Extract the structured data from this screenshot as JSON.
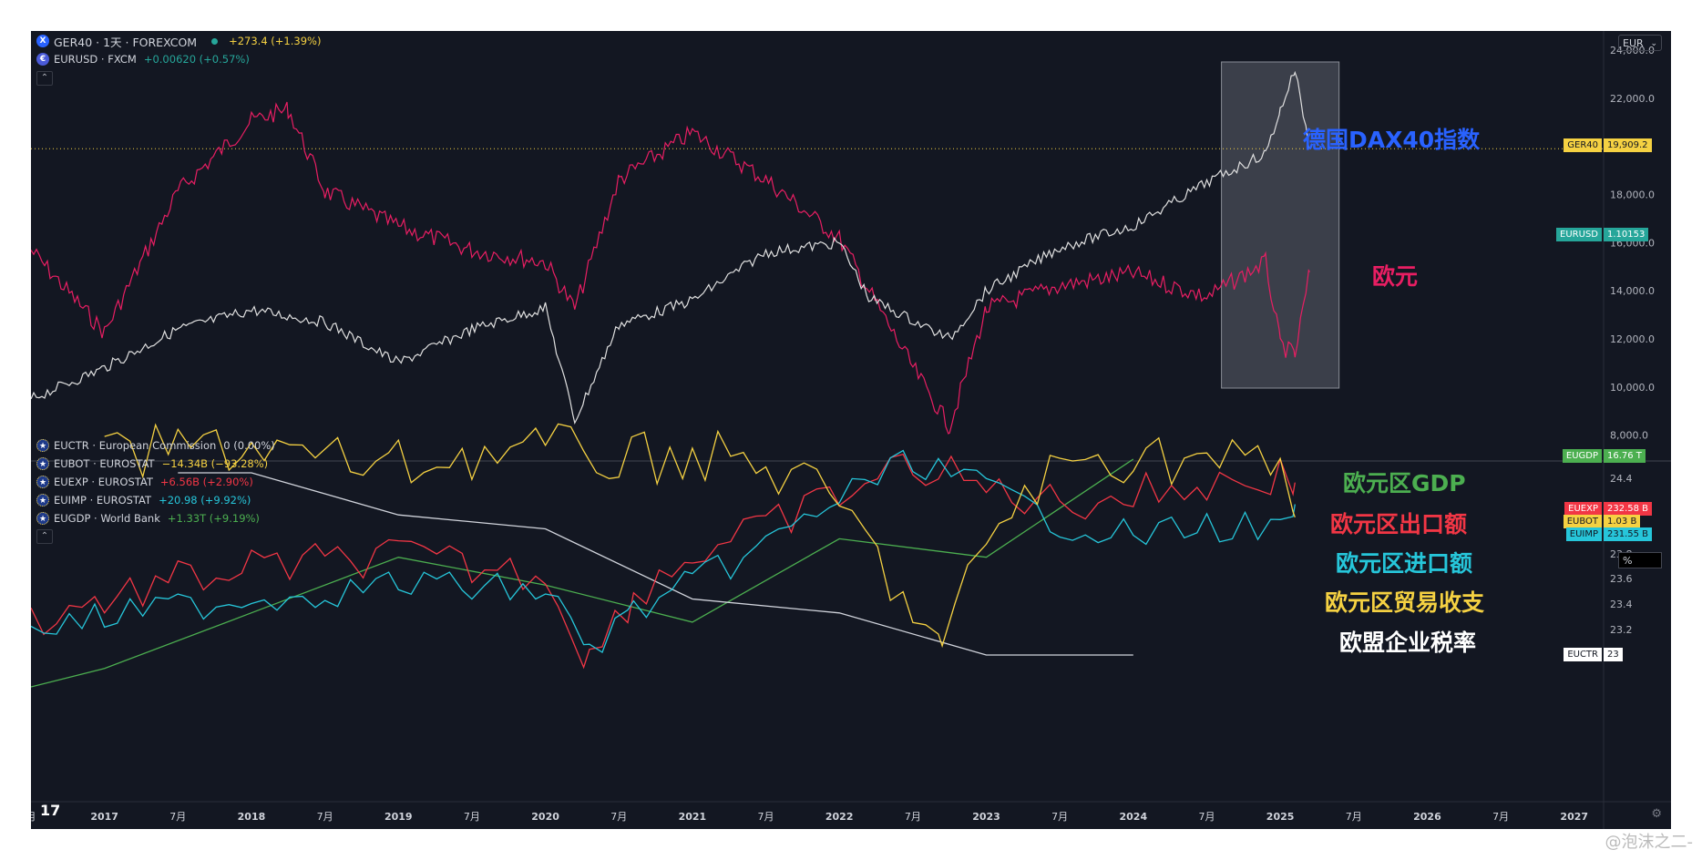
{
  "header": {
    "main_symbol": "GER40 · 1天 · FOREXCOM",
    "main_change": "+273.4 (+1.39%)",
    "overlay_symbol": "EURUSD · FXCM",
    "overlay_change": "+0.00620 (+0.57%)",
    "currency": "EUR"
  },
  "lower_legend": [
    {
      "name": "EUCTR · European Commission",
      "value": "0 (0.00%)",
      "color": "#d1d4dc"
    },
    {
      "name": "EUBOT · EUROSTAT",
      "value": "−14.34B (−93.28%)",
      "color": "#f5d142"
    },
    {
      "name": "EUEXP · EUROSTAT",
      "value": "+6.56B (+2.90%)",
      "color": "#f23645"
    },
    {
      "name": "EUIMP · EUROSTAT",
      "value": "+20.98 (+9.92%)",
      "color": "#26c6da"
    },
    {
      "name": "EUGDP · World Bank",
      "value": "+1.33T (+9.19%)",
      "color": "#4caf50"
    }
  ],
  "price_tags": [
    {
      "label": "GER40",
      "value": "19,909.2",
      "color": "#f5d142",
      "text": "#131722"
    },
    {
      "label": "EURUSD",
      "value": "1.10153",
      "color": "#26a69a",
      "text": "#ffffff"
    },
    {
      "label": "EUGDP",
      "value": "16.76 T",
      "color": "#4caf50",
      "text": "#ffffff"
    },
    {
      "label": "EUEXP",
      "value": "232.58 B",
      "color": "#f23645",
      "text": "#ffffff"
    },
    {
      "label": "EUBOT",
      "value": "1.03 B",
      "color": "#f5d142",
      "text": "#131722"
    },
    {
      "label": "EUIMP",
      "value": "231.55 B",
      "color": "#26c6da",
      "text": "#131722"
    },
    {
      "label": "EUCTR",
      "value": "23",
      "color": "#ffffff",
      "text": "#131722"
    }
  ],
  "pct_label": "%",
  "annotations": [
    {
      "text": "德国DAX40指数",
      "color": "#2962ff"
    },
    {
      "text": "欧元",
      "color": "#e91e63"
    },
    {
      "text": "欧元区GDP",
      "color": "#4caf50"
    },
    {
      "text": "欧元区出口额",
      "color": "#f23645"
    },
    {
      "text": "欧元区进口额",
      "color": "#26c6da"
    },
    {
      "text": "欧元区贸易收支",
      "color": "#f5d142"
    },
    {
      "text": "欧盟企业税率",
      "color": "#ffffff"
    }
  ],
  "watermark": "@泡沫之二-",
  "tv_logo": "17",
  "chart_data": [
    {
      "type": "line",
      "pane": "upper",
      "series": [
        {
          "name": "GER40",
          "color": "#e0e0e0",
          "x": [
            2016.5,
            2017.0,
            2017.5,
            2018.0,
            2018.5,
            2019.0,
            2019.5,
            2020.0,
            2020.2,
            2020.5,
            2021.0,
            2021.5,
            2022.0,
            2022.2,
            2022.75,
            2023.0,
            2023.5,
            2024.0,
            2024.5,
            2024.9,
            2025.0,
            2025.1,
            2025.2
          ],
          "y": [
            9500,
            10800,
            12400,
            13200,
            12700,
            11000,
            12400,
            13300,
            8600,
            12600,
            13600,
            15600,
            16000,
            13700,
            12000,
            14000,
            15800,
            16700,
            18500,
            19700,
            21500,
            23200,
            19909
          ]
        },
        {
          "name": "EURUSD",
          "color": "#e91e63",
          "x": [
            2016.5,
            2017.0,
            2017.5,
            2018.0,
            2018.25,
            2018.5,
            2019.0,
            2019.5,
            2020.0,
            2020.2,
            2020.5,
            2021.0,
            2021.5,
            2022.0,
            2022.5,
            2022.75,
            2023.0,
            2023.5,
            2024.0,
            2024.5,
            2024.9,
            2025.0,
            2025.1,
            2025.2
          ],
          "y": [
            1.12,
            1.05,
            1.17,
            1.23,
            1.24,
            1.17,
            1.14,
            1.12,
            1.11,
            1.07,
            1.18,
            1.22,
            1.18,
            1.13,
            1.02,
            0.97,
            1.07,
            1.09,
            1.1,
            1.08,
            1.11,
            1.04,
            1.03,
            1.10153
          ]
        }
      ],
      "ylabel": "EUR",
      "y_ticks": [
        "8,000.0",
        "10,000.0",
        "12,000.0",
        "14,000.0",
        "16,000.0",
        "18,000.0",
        "22,000.0",
        "24,000.0"
      ],
      "ylim": [
        7000,
        24500
      ],
      "xlim": [
        2016.5,
        2027.2
      ],
      "highlight_box": {
        "x0": 2024.6,
        "x1": 2025.4
      }
    },
    {
      "type": "line",
      "pane": "lower",
      "series": [
        {
          "name": "EUGDP",
          "color": "#4caf50",
          "x": [
            2016.5,
            2017.0,
            2018.0,
            2019.0,
            2020.0,
            2021.0,
            2022.0,
            2023.0,
            2024.0
          ],
          "y": [
            14.3,
            14.5,
            15.1,
            15.7,
            15.4,
            15.0,
            15.9,
            15.7,
            16.76
          ]
        },
        {
          "name": "EUCTR",
          "color": "#d1d4dc",
          "x": [
            2017.5,
            2018.0,
            2019.0,
            2020.0,
            2021.0,
            2022.0,
            2023.0,
            2024.0
          ],
          "y": [
            24.3,
            24.3,
            24.0,
            23.9,
            23.4,
            23.3,
            23.0,
            23.0
          ]
        },
        {
          "name": "EUEXP",
          "color": "#f23645",
          "x": [
            2016.5,
            2017.0,
            2017.5,
            2018.0,
            2018.5,
            2019.0,
            2019.5,
            2020.0,
            2020.3,
            2020.6,
            2021.0,
            2021.5,
            2022.0,
            2022.5,
            2023.0,
            2023.5,
            2024.0,
            2024.5,
            2025.0,
            2025.1
          ],
          "y": [
            180,
            188,
            195,
            200,
            202,
            205,
            200,
            198,
            165,
            190,
            205,
            215,
            228,
            240,
            230,
            225,
            228,
            232,
            235,
            232.58
          ]
        },
        {
          "name": "EUIMP",
          "color": "#26c6da",
          "x": [
            2016.5,
            2017.0,
            2017.5,
            2018.0,
            2018.5,
            2019.0,
            2019.5,
            2020.0,
            2020.3,
            2020.6,
            2021.0,
            2021.5,
            2022.0,
            2022.5,
            2023.0,
            2023.5,
            2024.0,
            2024.5,
            2025.0,
            2025.1
          ],
          "y": [
            165,
            172,
            178,
            182,
            185,
            190,
            188,
            186,
            155,
            175,
            190,
            210,
            235,
            255,
            240,
            222,
            215,
            220,
            218,
            231.55
          ]
        },
        {
          "name": "EUBOT",
          "color": "#f5d142",
          "x": [
            2017.0,
            2017.5,
            2018.0,
            2018.5,
            2019.0,
            2019.5,
            2020.0,
            2020.5,
            2021.0,
            2021.5,
            2022.0,
            2022.5,
            2022.7,
            2023.0,
            2023.5,
            2024.0,
            2024.5,
            2025.0,
            2025.1
          ],
          "y": [
            20,
            24,
            25,
            20,
            18,
            22,
            24,
            20,
            22,
            18,
            5,
            -30,
            -45,
            -5,
            18,
            22,
            20,
            18,
            1.03
          ]
        }
      ],
      "y_ticks": [
        "23.2",
        "23.4",
        "23.6",
        "23.8",
        "24.4"
      ],
      "x_ticks": [
        "月",
        "2017",
        "7月",
        "2018",
        "7月",
        "2019",
        "7月",
        "2020",
        "7月",
        "2021",
        "7月",
        "2022",
        "7月",
        "2023",
        "7月",
        "2024",
        "7月",
        "2025",
        "7月",
        "2026",
        "7月",
        "2027"
      ]
    }
  ]
}
